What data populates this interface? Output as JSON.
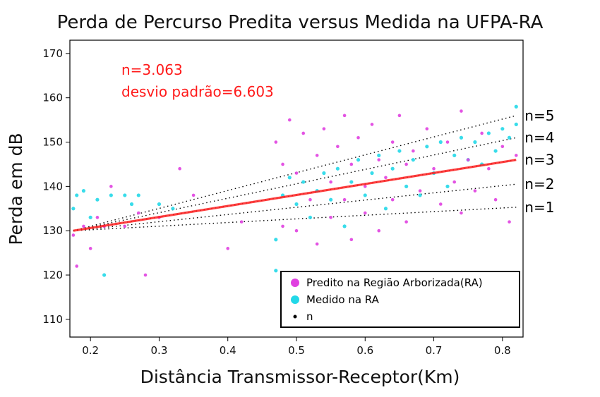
{
  "chart_data": {
    "type": "scatter",
    "title": "Perda de Percurso Predita versus Medida na UFPA-RA",
    "xlabel": "Distância Transmissor-Receptor(Km)",
    "ylabel": "Perda em dB",
    "xlim": [
      0.17,
      0.83
    ],
    "ylim": [
      106,
      173
    ],
    "x_ticks": [
      0.2,
      0.3,
      0.4,
      0.5,
      0.6,
      0.7,
      0.8
    ],
    "x_tick_labels": [
      "0.2",
      "0.3",
      "0.4",
      "0.5",
      "0.6",
      "0.7",
      "0.8"
    ],
    "y_ticks": [
      110,
      120,
      130,
      140,
      150,
      160,
      170
    ],
    "y_tick_labels": [
      "110",
      "120",
      "130",
      "140",
      "150",
      "160",
      "170"
    ],
    "grid": false,
    "legend_position": "bottom-right",
    "annotations": [
      "n=3.063",
      "desvio padrão=6.603"
    ],
    "series": [
      {
        "name": "Predito na Região Arborizada(RA)",
        "color": "#e040e0",
        "points": [
          [
            0.175,
            129
          ],
          [
            0.18,
            122
          ],
          [
            0.19,
            131
          ],
          [
            0.2,
            126
          ],
          [
            0.21,
            133
          ],
          [
            0.22,
            131
          ],
          [
            0.23,
            140
          ],
          [
            0.25,
            131
          ],
          [
            0.27,
            134
          ],
          [
            0.28,
            120
          ],
          [
            0.3,
            133
          ],
          [
            0.33,
            144
          ],
          [
            0.35,
            138
          ],
          [
            0.4,
            126
          ],
          [
            0.42,
            132
          ],
          [
            0.47,
            150
          ],
          [
            0.48,
            145
          ],
          [
            0.48,
            131
          ],
          [
            0.49,
            155
          ],
          [
            0.5,
            143
          ],
          [
            0.5,
            130
          ],
          [
            0.51,
            152
          ],
          [
            0.52,
            137
          ],
          [
            0.53,
            147
          ],
          [
            0.53,
            127
          ],
          [
            0.54,
            153
          ],
          [
            0.55,
            141
          ],
          [
            0.55,
            133
          ],
          [
            0.56,
            149
          ],
          [
            0.57,
            156
          ],
          [
            0.57,
            137
          ],
          [
            0.58,
            145
          ],
          [
            0.58,
            128
          ],
          [
            0.59,
            151
          ],
          [
            0.6,
            140
          ],
          [
            0.6,
            134
          ],
          [
            0.61,
            154
          ],
          [
            0.62,
            146
          ],
          [
            0.62,
            130
          ],
          [
            0.63,
            142
          ],
          [
            0.64,
            150
          ],
          [
            0.64,
            137
          ],
          [
            0.65,
            156
          ],
          [
            0.66,
            145
          ],
          [
            0.66,
            132
          ],
          [
            0.67,
            148
          ],
          [
            0.68,
            139
          ],
          [
            0.69,
            153
          ],
          [
            0.7,
            144
          ],
          [
            0.71,
            136
          ],
          [
            0.72,
            150
          ],
          [
            0.73,
            141
          ],
          [
            0.74,
            157
          ],
          [
            0.74,
            134
          ],
          [
            0.75,
            146
          ],
          [
            0.76,
            139
          ],
          [
            0.77,
            152
          ],
          [
            0.78,
            144
          ],
          [
            0.79,
            137
          ],
          [
            0.8,
            149
          ],
          [
            0.81,
            132
          ],
          [
            0.82,
            147
          ]
        ]
      },
      {
        "name": "Medido na RA",
        "color": "#22d8e8",
        "points": [
          [
            0.175,
            135
          ],
          [
            0.18,
            138
          ],
          [
            0.19,
            139
          ],
          [
            0.2,
            133
          ],
          [
            0.21,
            137
          ],
          [
            0.22,
            120
          ],
          [
            0.23,
            138
          ],
          [
            0.25,
            138
          ],
          [
            0.26,
            136
          ],
          [
            0.27,
            138
          ],
          [
            0.3,
            136
          ],
          [
            0.32,
            135
          ],
          [
            0.47,
            128
          ],
          [
            0.47,
            121
          ],
          [
            0.48,
            138
          ],
          [
            0.49,
            142
          ],
          [
            0.5,
            136
          ],
          [
            0.51,
            141
          ],
          [
            0.52,
            133
          ],
          [
            0.53,
            139
          ],
          [
            0.54,
            143
          ],
          [
            0.55,
            137
          ],
          [
            0.56,
            144
          ],
          [
            0.57,
            131
          ],
          [
            0.58,
            141
          ],
          [
            0.59,
            146
          ],
          [
            0.6,
            138
          ],
          [
            0.61,
            143
          ],
          [
            0.62,
            147
          ],
          [
            0.63,
            135
          ],
          [
            0.64,
            144
          ],
          [
            0.65,
            148
          ],
          [
            0.66,
            140
          ],
          [
            0.67,
            146
          ],
          [
            0.68,
            138
          ],
          [
            0.69,
            149
          ],
          [
            0.7,
            143
          ],
          [
            0.71,
            150
          ],
          [
            0.72,
            140
          ],
          [
            0.73,
            147
          ],
          [
            0.74,
            151
          ],
          [
            0.75,
            146
          ],
          [
            0.76,
            150
          ],
          [
            0.77,
            145
          ],
          [
            0.78,
            152
          ],
          [
            0.79,
            148
          ],
          [
            0.8,
            153
          ],
          [
            0.81,
            151
          ],
          [
            0.82,
            154
          ],
          [
            0.82,
            158
          ]
        ]
      },
      {
        "name": "n",
        "color": "#000000",
        "lines": [
          {
            "label": "n=5",
            "start": [
              0.175,
              130
            ],
            "end": [
              0.82,
              156
            ]
          },
          {
            "label": "n=4",
            "start": [
              0.175,
              130
            ],
            "end": [
              0.82,
              151
            ]
          },
          {
            "label": "n=3",
            "start": [
              0.175,
              130
            ],
            "end": [
              0.82,
              146
            ]
          },
          {
            "label": "n=2",
            "start": [
              0.175,
              130
            ],
            "end": [
              0.82,
              140.5
            ]
          },
          {
            "label": "n=1",
            "start": [
              0.175,
              130
            ],
            "end": [
              0.82,
              135.3
            ]
          }
        ]
      }
    ],
    "fit": {
      "name": "n=3.063",
      "color": "#ff2020",
      "start": [
        0.175,
        130
      ],
      "end": [
        0.82,
        146
      ]
    }
  }
}
